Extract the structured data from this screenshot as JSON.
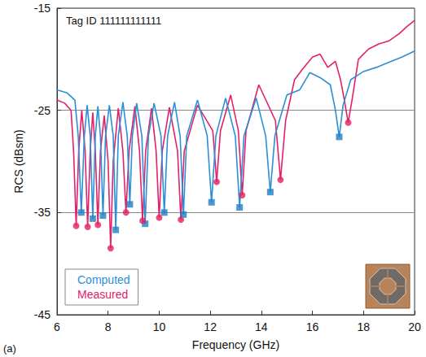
{
  "chart_data": {
    "type": "line",
    "title": "Tag ID 111111111111",
    "x_label": "Frequency (GHz)",
    "y_label": "RCS (dBsm)",
    "annotations": [
      "(a)"
    ],
    "xlim": [
      6,
      20
    ],
    "xticks": [
      6,
      8,
      10,
      12,
      14,
      16,
      18,
      20
    ],
    "ylim": [
      -45,
      -15
    ],
    "yticks": [
      -45,
      -35,
      -25,
      -15
    ],
    "grid": true,
    "legend": "lower left",
    "series": [
      {
        "name": "Measured",
        "type": "line",
        "color": "#e3206b",
        "x": [
          6.0,
          6.3,
          6.55,
          6.65,
          6.75,
          6.85,
          6.97,
          7.1,
          7.2,
          7.3,
          7.4,
          7.5,
          7.6,
          7.7,
          7.85,
          8.0,
          8.1,
          8.2,
          8.4,
          8.58,
          8.7,
          8.82,
          9.05,
          9.23,
          9.35,
          9.47,
          9.7,
          9.88,
          10.0,
          10.12,
          10.4,
          10.72,
          10.85,
          10.98,
          11.5,
          12.1,
          12.25,
          12.4,
          12.8,
          13.1,
          13.25,
          13.4,
          13.9,
          14.55,
          14.75,
          14.95,
          15.3,
          15.6,
          16.0,
          16.3,
          16.6,
          16.9,
          17.1,
          17.25,
          17.4,
          17.55,
          17.8,
          18.2,
          18.6,
          19.0,
          19.4,
          19.7,
          20.0
        ],
        "values": [
          -24,
          -24.3,
          -25,
          -29,
          -36.3,
          -29,
          -25,
          -29,
          -36.4,
          -29,
          -25.2,
          -29,
          -36.2,
          -29,
          -25.5,
          -30,
          -38.5,
          -30,
          -24.8,
          -29,
          -35,
          -29,
          -24.6,
          -29,
          -35.8,
          -29,
          -24.8,
          -29,
          -35.5,
          -29,
          -24.7,
          -29,
          -35.7,
          -29,
          -24.5,
          -27,
          -32,
          -27,
          -23.5,
          -27,
          -33.3,
          -27,
          -22.5,
          -26,
          -31.8,
          -26,
          -22,
          -21,
          -19.8,
          -19.5,
          -20.8,
          -20.2,
          -22,
          -24,
          -26.2,
          -24,
          -20,
          -19,
          -18.5,
          -18.2,
          -17.5,
          -16.8,
          -16.2
        ]
      },
      {
        "name": "Computed",
        "type": "line",
        "color": "#2a8fd6",
        "x": [
          6.0,
          6.4,
          6.7,
          6.83,
          6.95,
          7.07,
          7.18,
          7.3,
          7.4,
          7.5,
          7.6,
          7.7,
          7.8,
          7.9,
          8.05,
          8.2,
          8.3,
          8.4,
          8.58,
          8.75,
          8.85,
          8.95,
          9.12,
          9.32,
          9.45,
          9.58,
          9.8,
          10.07,
          10.2,
          10.33,
          10.6,
          10.82,
          10.95,
          11.08,
          11.5,
          11.88,
          12.05,
          12.22,
          12.6,
          12.98,
          13.15,
          13.32,
          13.8,
          14.17,
          14.35,
          14.53,
          15.0,
          15.5,
          15.9,
          16.3,
          16.7,
          16.9,
          17.05,
          17.2,
          17.5,
          18.0,
          18.5,
          19.0,
          19.5,
          20.0
        ],
        "values": [
          -23,
          -23.3,
          -24,
          -27.5,
          -35,
          -27.5,
          -24.5,
          -27.5,
          -35.6,
          -27.5,
          -24.6,
          -27.5,
          -35.3,
          -27.5,
          -24.5,
          -27.5,
          -36.7,
          -27.5,
          -24.2,
          -27.5,
          -34.2,
          -27.5,
          -24.3,
          -27.5,
          -36.1,
          -27.5,
          -24.3,
          -27.5,
          -35,
          -27.5,
          -24.2,
          -27.5,
          -35.2,
          -27.5,
          -24,
          -27.5,
          -34,
          -27.5,
          -23.8,
          -27.5,
          -34.5,
          -27.5,
          -23.8,
          -27.5,
          -33,
          -27.5,
          -23.5,
          -23,
          -21.3,
          -21.8,
          -22.5,
          -25,
          -27.6,
          -24.5,
          -22,
          -21.2,
          -20.8,
          -20.3,
          -19.8,
          -19.2
        ]
      },
      {
        "name": "Computed",
        "type": "scatter",
        "marker": "square",
        "color": "#1f7fc4",
        "x": [
          6.95,
          7.4,
          7.8,
          8.3,
          8.85,
          9.45,
          10.2,
          10.95,
          12.05,
          13.15,
          14.35,
          17.05
        ],
        "values": [
          -35,
          -35.6,
          -35.3,
          -36.7,
          -34.2,
          -36.1,
          -35,
          -35.2,
          -34,
          -34.5,
          -33,
          -27.6
        ]
      },
      {
        "name": "Measured",
        "type": "scatter",
        "marker": "circle",
        "color": "#e3205a",
        "x": [
          6.75,
          7.2,
          7.6,
          8.1,
          8.7,
          9.35,
          10.0,
          10.85,
          12.25,
          13.25,
          14.75,
          17.4
        ],
        "values": [
          -36.3,
          -36.4,
          -36.2,
          -38.5,
          -35,
          -35.8,
          -35.5,
          -35.7,
          -32,
          -33.3,
          -31.8,
          -26.2
        ]
      }
    ]
  }
}
